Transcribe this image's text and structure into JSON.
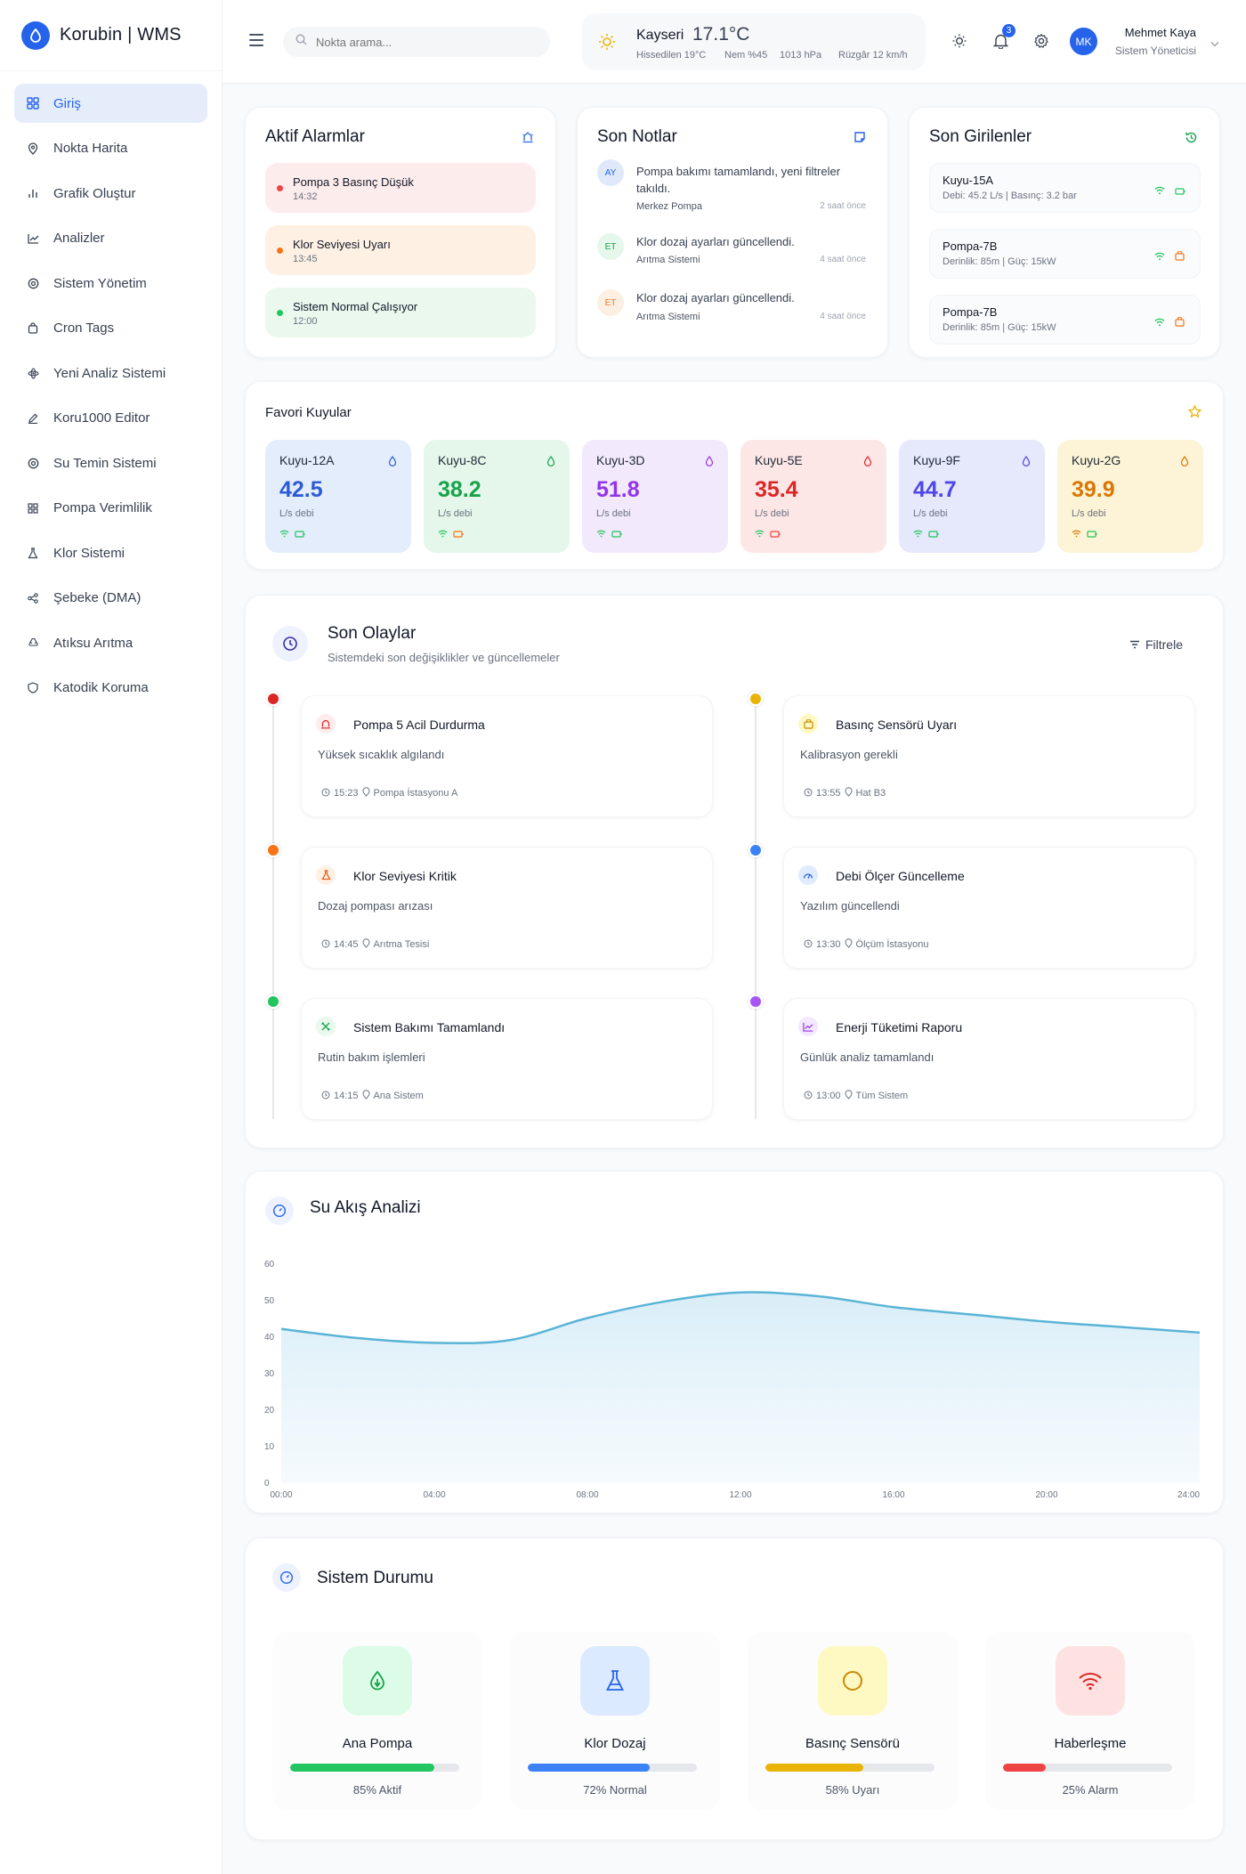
{
  "app": {
    "name": "Korubin | WMS"
  },
  "sidebar": {
    "items": [
      {
        "label": "Giriş",
        "icon": "grid-icon",
        "active": true
      },
      {
        "label": "Nokta Harita",
        "icon": "map-pin-icon"
      },
      {
        "label": "Grafik Oluştur",
        "icon": "bar-chart-icon"
      },
      {
        "label": "Analizler",
        "icon": "line-chart-icon"
      },
      {
        "label": "Sistem Yönetim",
        "icon": "target-icon"
      },
      {
        "label": "Cron Tags",
        "icon": "bag-icon"
      },
      {
        "label": "Yeni Analiz Sistemi",
        "icon": "atom-icon"
      },
      {
        "label": "Koru1000 Editor",
        "icon": "pencil-icon"
      },
      {
        "label": "Su Temin Sistemi",
        "icon": "target-icon"
      },
      {
        "label": "Pompa Verimlilik",
        "icon": "grid-icon"
      },
      {
        "label": "Klor Sistemi",
        "icon": "flask-icon"
      },
      {
        "label": "Şebeke (DMA)",
        "icon": "share-icon"
      },
      {
        "label": "Atıksu Arıtma",
        "icon": "recycle-icon"
      },
      {
        "label": "Katodik Koruma",
        "icon": "shield-icon"
      }
    ]
  },
  "header": {
    "search_placeholder": "Nokta arama...",
    "weather": {
      "city": "Kayseri",
      "temp": "17.1°C",
      "feels": "Hissedilen 19°C",
      "humidity": "Nem %45",
      "pressure": "1013 hPa",
      "wind": "Rüzgâr 12 km/h"
    },
    "notifications": "3",
    "user": {
      "initials": "MK",
      "name": "Mehmet Kaya",
      "role": "Sistem Yöneticisi"
    }
  },
  "alarms": {
    "title": "Aktif Alarmlar",
    "items": [
      {
        "title": "Pompa 3 Basınç Düşük",
        "time": "14:32",
        "color": "#ef4444",
        "bg": "#fdecec"
      },
      {
        "title": "Klor Seviyesi Uyarı",
        "time": "13:45",
        "color": "#f97316",
        "bg": "#fef1e4"
      },
      {
        "title": "Sistem Normal Çalışıyor",
        "time": "12:00",
        "color": "#22c55e",
        "bg": "#eaf8ee"
      }
    ]
  },
  "notes": {
    "title": "Son Notlar",
    "items": [
      {
        "initials": "AY",
        "text": "Pompa bakımı tamamlandı, yeni filtreler takıldı.",
        "source": "Merkez Pompa",
        "time": "2 saat önce"
      },
      {
        "initials": "ET",
        "text": "Klor dozaj ayarları güncellendi.",
        "source": "Arıtma Sistemi",
        "time": "4 saat önce"
      },
      {
        "initials": "ET",
        "text": "Klor dozaj ayarları güncellendi.",
        "source": "Arıtma Sistemi",
        "time": "4 saat önce"
      }
    ]
  },
  "entries": {
    "title": "Son Girilenler",
    "items": [
      {
        "title": "Kuyu-15A",
        "sub": "Debi: 45.2 L/s | Basınç: 3.2 bar"
      },
      {
        "title": "Pompa-7B",
        "sub": "Derinlik: 85m | Güç: 15kW"
      },
      {
        "title": "Pompa-7B",
        "sub": "Derinlik: 85m | Güç: 15kW"
      }
    ]
  },
  "favorites": {
    "title": "Favori Kuyular",
    "unit": "L/s debi",
    "items": [
      {
        "name": "Kuyu-12A",
        "value": "42.5",
        "color": "#2d5bd7",
        "bg": "#e3edfb"
      },
      {
        "name": "Kuyu-8C",
        "value": "38.2",
        "color": "#16a34a",
        "bg": "#e4f7ea"
      },
      {
        "name": "Kuyu-3D",
        "value": "51.8",
        "color": "#9333ea",
        "bg": "#f3e9fc"
      },
      {
        "name": "Kuyu-5E",
        "value": "35.4",
        "color": "#dc2626",
        "bg": "#fde6e6"
      },
      {
        "name": "Kuyu-9F",
        "value": "44.7",
        "color": "#4f46e5",
        "bg": "#e6e8fb"
      },
      {
        "name": "Kuyu-2G",
        "value": "39.9",
        "color": "#d97706",
        "bg": "#fdf3d6"
      }
    ]
  },
  "events": {
    "title": "Son Olaylar",
    "subtitle": "Sistemdeki son değişiklikler ve güncellemeler",
    "filter": "Filtrele",
    "left": [
      {
        "title": "Pompa 5 Acil Durdurma",
        "desc": "Yüksek sıcaklık algılandı",
        "time": "15:23",
        "place": "Pompa İstasyonu A",
        "dot": "#dc2626",
        "icon": "alarm-icon"
      },
      {
        "title": "Klor Seviyesi Kritik",
        "desc": "Dozaj pompası arızası",
        "time": "14:45",
        "place": "Arıtma Tesisi",
        "dot": "#f97316",
        "icon": "flask-icon"
      },
      {
        "title": "Sistem Bakımı Tamamlandı",
        "desc": "Rutin bakım işlemleri",
        "time": "14:15",
        "place": "Ana Sistem",
        "dot": "#22c55e",
        "icon": "tools-icon"
      }
    ],
    "right": [
      {
        "title": "Basınç Sensörü Uyarı",
        "desc": "Kalibrasyon gerekli",
        "time": "13:55",
        "place": "Hat B3",
        "dot": "#eab308",
        "icon": "bag-icon"
      },
      {
        "title": "Debi Ölçer Güncelleme",
        "desc": "Yazılım güncellendi",
        "time": "13:30",
        "place": "Ölçüm İstasyonu",
        "dot": "#3b82f6",
        "icon": "gauge-icon"
      },
      {
        "title": "Enerji Tüketimi Raporu",
        "desc": "Günlük analiz tamamlandı",
        "time": "13:00",
        "place": "Tüm Sistem",
        "dot": "#a855f7",
        "icon": "line-chart-icon"
      }
    ]
  },
  "flow": {
    "title": "Su Akış Analizi"
  },
  "chart_data": {
    "type": "area",
    "title": "Su Akış Analizi",
    "x": [
      "00:00",
      "02:00",
      "04:00",
      "06:00",
      "08:00",
      "10:00",
      "12:00",
      "14:00",
      "16:00",
      "18:00",
      "20:00",
      "22:00",
      "24:00"
    ],
    "x_ticks": [
      "00:00",
      "04:00",
      "08:00",
      "12:00",
      "16:00",
      "20:00",
      "24:00"
    ],
    "series": [
      {
        "values": [
          42,
          39.5,
          38.2,
          39,
          45,
          49.5,
          52,
          51,
          48,
          46,
          44,
          42.5,
          41
        ]
      }
    ],
    "ylim": [
      0,
      60
    ],
    "y_ticks": [
      0,
      10,
      20,
      30,
      40,
      50,
      60
    ],
    "line_color": "#5ab4d6",
    "grid": false
  },
  "status": {
    "title": "Sistem Durumu",
    "items": [
      {
        "name": "Ana Pompa",
        "value": "85% Aktif",
        "pct": 85,
        "color": "#22c55e",
        "bg": "#dcfce7",
        "icon": "leaf-icon"
      },
      {
        "name": "Klor Dozaj",
        "value": "72% Normal",
        "pct": 72,
        "color": "#3b82f6",
        "bg": "#dbeafe",
        "icon": "flask-icon"
      },
      {
        "name": "Basınç Sensörü",
        "value": "58% Uyarı",
        "pct": 58,
        "color": "#eab308",
        "bg": "#fef9c3",
        "icon": "circle-icon"
      },
      {
        "name": "Haberleşme",
        "value": "25% Alarm",
        "pct": 25,
        "color": "#ef4444",
        "bg": "#fee2e2",
        "icon": "wifi-icon"
      }
    ]
  }
}
